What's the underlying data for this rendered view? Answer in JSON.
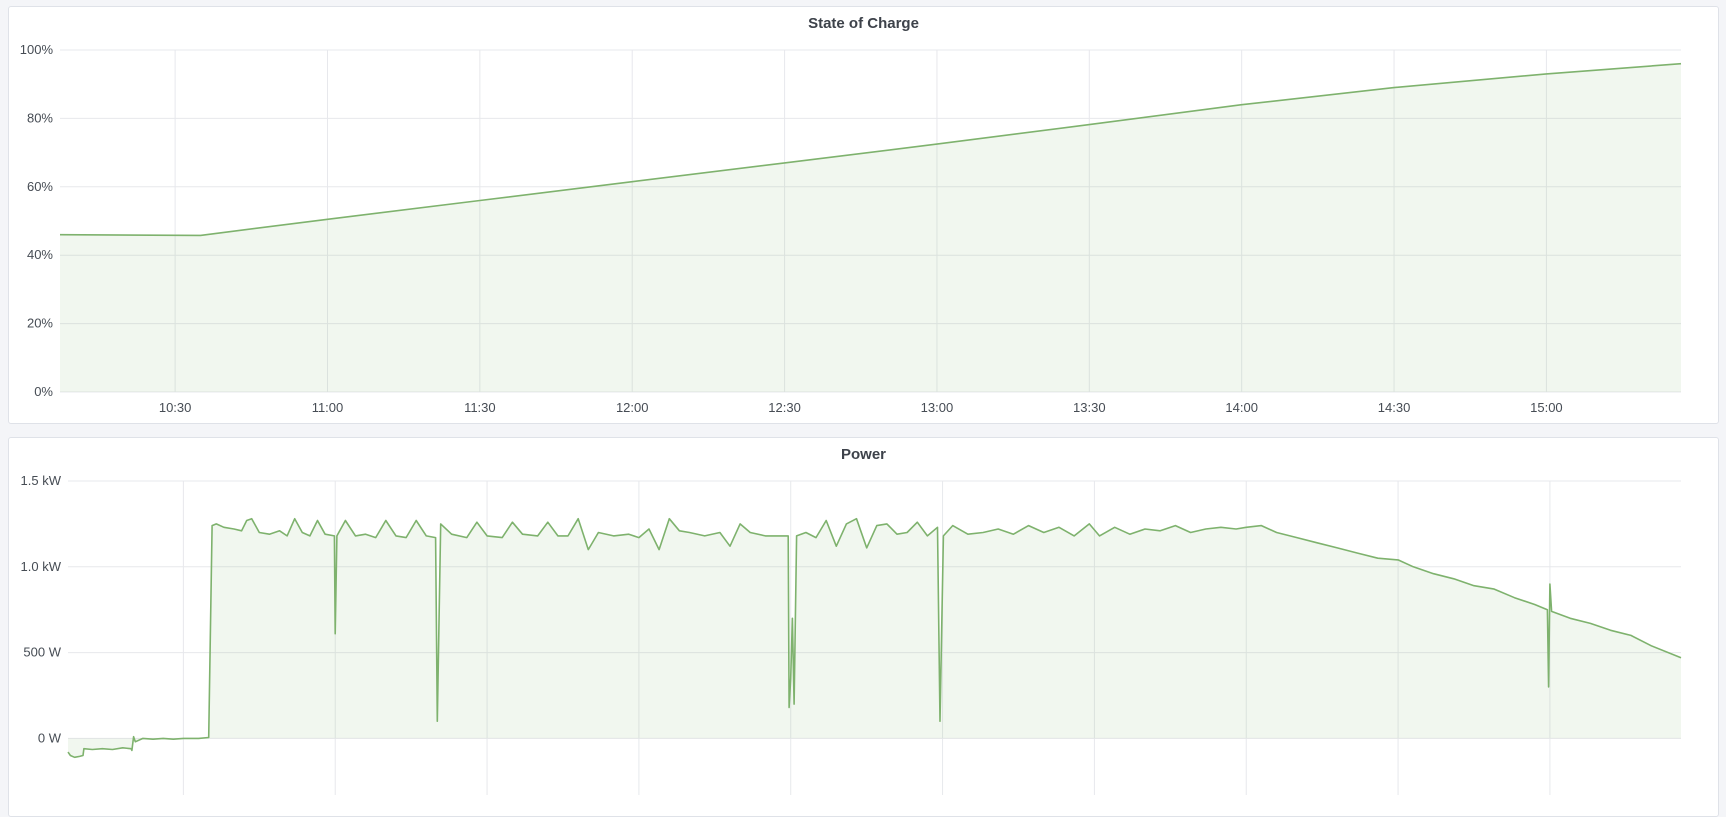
{
  "colors": {
    "line": "#7eb26d",
    "fill": "#7eb26d",
    "grid": "#e7e8ec",
    "background": "#f4f5f8"
  },
  "chart_data": [
    {
      "type": "area",
      "title": "State of Charge",
      "xlim": [
        "10:07:20",
        "15:26:30"
      ],
      "ylim": [
        0,
        100
      ],
      "grid": true,
      "y_ticks": [
        0,
        20,
        40,
        60,
        80,
        100
      ],
      "y_tick_labels": [
        "0%",
        "20%",
        "40%",
        "60%",
        "80%",
        "100%"
      ],
      "x_ticks": [
        "10:30",
        "11:00",
        "11:30",
        "12:00",
        "12:30",
        "13:00",
        "13:30",
        "14:00",
        "14:30",
        "15:00"
      ],
      "x_tick_labels": [
        "10:30",
        "11:00",
        "11:30",
        "12:00",
        "12:30",
        "13:00",
        "13:30",
        "14:00",
        "14:30",
        "15:00"
      ],
      "points": [
        [
          "10:07:20",
          46
        ],
        [
          "10:35:00",
          45.8
        ],
        [
          "11:00:00",
          50.5
        ],
        [
          "11:30:00",
          56
        ],
        [
          "12:00:00",
          61.5
        ],
        [
          "12:30:00",
          67
        ],
        [
          "13:00:00",
          72.5
        ],
        [
          "13:30:00",
          78.2
        ],
        [
          "14:00:00",
          84
        ],
        [
          "14:30:00",
          89
        ],
        [
          "15:00:00",
          93
        ],
        [
          "15:26:30",
          96
        ]
      ]
    },
    {
      "type": "area",
      "title": "Power",
      "xlim": [
        "10:07:12",
        "15:25:54"
      ],
      "ylim": [
        -330,
        1500
      ],
      "grid": true,
      "y_ticks": [
        0,
        500,
        1000,
        1500
      ],
      "y_tick_labels": [
        "0 W",
        "500 W",
        "1.0 kW",
        "1.5 kW"
      ],
      "x_ticks": [
        "10:30",
        "11:00",
        "11:30",
        "12:00",
        "12:30",
        "13:00",
        "13:30",
        "14:00",
        "14:30",
        "15:00"
      ],
      "points": [
        [
          "10:07:12",
          -80
        ],
        [
          "10:07:40",
          -100
        ],
        [
          "10:08:30",
          -110
        ],
        [
          "10:09:30",
          -105
        ],
        [
          "10:10:10",
          -100
        ],
        [
          "10:10:20",
          -60
        ],
        [
          "10:12:00",
          -65
        ],
        [
          "10:14:00",
          -60
        ],
        [
          "10:16:00",
          -65
        ],
        [
          "10:18:00",
          -55
        ],
        [
          "10:19:40",
          -60
        ],
        [
          "10:19:50",
          -70
        ],
        [
          "10:20:10",
          10
        ],
        [
          "10:20:30",
          -20
        ],
        [
          "10:22:00",
          0
        ],
        [
          "10:24:00",
          -5
        ],
        [
          "10:26:00",
          0
        ],
        [
          "10:28:00",
          -5
        ],
        [
          "10:30:00",
          0
        ],
        [
          "10:33:00",
          0
        ],
        [
          "10:35:00",
          5
        ],
        [
          "10:35:40",
          1240
        ],
        [
          "10:36:30",
          1250
        ],
        [
          "10:38:00",
          1230
        ],
        [
          "10:40:00",
          1220
        ],
        [
          "10:41:30",
          1210
        ],
        [
          "10:42:30",
          1270
        ],
        [
          "10:43:30",
          1280
        ],
        [
          "10:45:00",
          1200
        ],
        [
          "10:47:00",
          1190
        ],
        [
          "10:49:00",
          1210
        ],
        [
          "10:50:30",
          1180
        ],
        [
          "10:52:00",
          1280
        ],
        [
          "10:53:30",
          1200
        ],
        [
          "10:55:00",
          1180
        ],
        [
          "10:56:30",
          1270
        ],
        [
          "10:58:00",
          1190
        ],
        [
          "10:59:50",
          1180
        ],
        [
          "11:00:00",
          610
        ],
        [
          "11:00:20",
          1180
        ],
        [
          "11:02:00",
          1270
        ],
        [
          "11:04:00",
          1180
        ],
        [
          "11:06:00",
          1190
        ],
        [
          "11:08:00",
          1170
        ],
        [
          "11:10:00",
          1270
        ],
        [
          "11:12:00",
          1180
        ],
        [
          "11:14:00",
          1170
        ],
        [
          "11:16:00",
          1270
        ],
        [
          "11:18:00",
          1180
        ],
        [
          "11:19:50",
          1170
        ],
        [
          "11:20:10",
          100
        ],
        [
          "11:20:50",
          1250
        ],
        [
          "11:23:00",
          1190
        ],
        [
          "11:26:00",
          1170
        ],
        [
          "11:28:00",
          1260
        ],
        [
          "11:30:00",
          1180
        ],
        [
          "11:33:00",
          1170
        ],
        [
          "11:35:00",
          1260
        ],
        [
          "11:37:00",
          1190
        ],
        [
          "11:40:00",
          1180
        ],
        [
          "11:42:00",
          1260
        ],
        [
          "11:44:00",
          1180
        ],
        [
          "11:46:00",
          1180
        ],
        [
          "11:48:00",
          1280
        ],
        [
          "11:50:00",
          1100
        ],
        [
          "11:52:00",
          1200
        ],
        [
          "11:55:00",
          1180
        ],
        [
          "11:58:00",
          1190
        ],
        [
          "12:00:00",
          1170
        ],
        [
          "12:02:00",
          1220
        ],
        [
          "12:04:00",
          1100
        ],
        [
          "12:06:00",
          1280
        ],
        [
          "12:08:00",
          1210
        ],
        [
          "12:10:00",
          1200
        ],
        [
          "12:13:00",
          1180
        ],
        [
          "12:16:00",
          1200
        ],
        [
          "12:18:00",
          1120
        ],
        [
          "12:20:00",
          1250
        ],
        [
          "12:22:00",
          1200
        ],
        [
          "12:25:00",
          1180
        ],
        [
          "12:29:30",
          1180
        ],
        [
          "12:29:40",
          180
        ],
        [
          "12:30:00",
          350
        ],
        [
          "12:30:20",
          700
        ],
        [
          "12:30:40",
          200
        ],
        [
          "12:31:10",
          1180
        ],
        [
          "12:33:00",
          1200
        ],
        [
          "12:35:00",
          1170
        ],
        [
          "12:37:00",
          1270
        ],
        [
          "12:39:00",
          1120
        ],
        [
          "12:41:00",
          1250
        ],
        [
          "12:43:00",
          1280
        ],
        [
          "12:45:00",
          1110
        ],
        [
          "12:47:00",
          1240
        ],
        [
          "12:49:00",
          1250
        ],
        [
          "12:51:00",
          1190
        ],
        [
          "12:53:00",
          1200
        ],
        [
          "12:55:00",
          1260
        ],
        [
          "12:57:00",
          1180
        ],
        [
          "12:59:00",
          1230
        ],
        [
          "12:59:30",
          100
        ],
        [
          "13:00:10",
          1180
        ],
        [
          "13:02:00",
          1240
        ],
        [
          "13:05:00",
          1190
        ],
        [
          "13:08:00",
          1200
        ],
        [
          "13:11:00",
          1220
        ],
        [
          "13:14:00",
          1190
        ],
        [
          "13:17:00",
          1240
        ],
        [
          "13:20:00",
          1200
        ],
        [
          "13:23:00",
          1230
        ],
        [
          "13:26:00",
          1180
        ],
        [
          "13:29:00",
          1250
        ],
        [
          "13:31:00",
          1180
        ],
        [
          "13:34:00",
          1230
        ],
        [
          "13:37:00",
          1190
        ],
        [
          "13:40:00",
          1220
        ],
        [
          "13:43:00",
          1210
        ],
        [
          "13:46:00",
          1240
        ],
        [
          "13:49:00",
          1200
        ],
        [
          "13:52:00",
          1220
        ],
        [
          "13:55:00",
          1230
        ],
        [
          "13:58:00",
          1220
        ],
        [
          "14:00:00",
          1230
        ],
        [
          "14:03:00",
          1240
        ],
        [
          "14:06:00",
          1200
        ],
        [
          "14:10:00",
          1170
        ],
        [
          "14:14:00",
          1140
        ],
        [
          "14:18:00",
          1110
        ],
        [
          "14:22:00",
          1080
        ],
        [
          "14:26:00",
          1050
        ],
        [
          "14:30:00",
          1040
        ],
        [
          "14:33:00",
          1000
        ],
        [
          "14:37:00",
          960
        ],
        [
          "14:41:00",
          930
        ],
        [
          "14:45:00",
          890
        ],
        [
          "14:49:00",
          870
        ],
        [
          "14:53:00",
          820
        ],
        [
          "14:57:00",
          780
        ],
        [
          "14:59:30",
          750
        ],
        [
          "14:59:45",
          300
        ],
        [
          "15:00:00",
          900
        ],
        [
          "15:00:20",
          740
        ],
        [
          "15:04:00",
          700
        ],
        [
          "15:08:00",
          670
        ],
        [
          "15:12:00",
          630
        ],
        [
          "15:16:00",
          600
        ],
        [
          "15:20:00",
          540
        ],
        [
          "15:25:54",
          470
        ]
      ]
    }
  ]
}
